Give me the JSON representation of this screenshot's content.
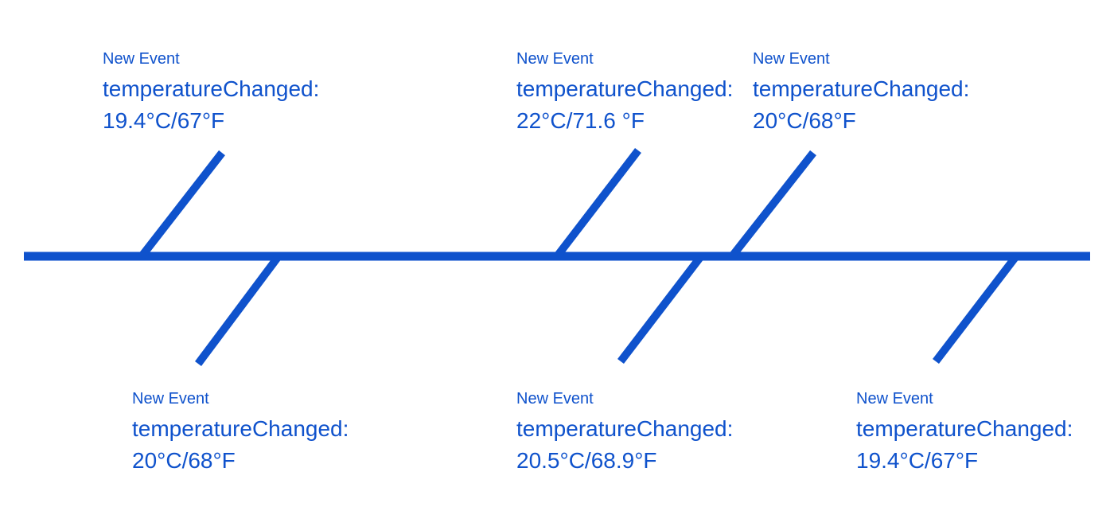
{
  "colors": {
    "line": "#0f52cc",
    "text": "#0f52cc",
    "background": "#ffffff"
  },
  "events": [
    {
      "id": "top-1",
      "kicker": "New Event",
      "name": "temperatureChanged:",
      "value": "19.4°C/67°F"
    },
    {
      "id": "top-2",
      "kicker": "New Event",
      "name": "temperatureChanged:",
      "value": "22°C/71.6 °F"
    },
    {
      "id": "top-3",
      "kicker": "New Event",
      "name": "temperatureChanged:",
      "value": "20°C/68°F"
    },
    {
      "id": "bottom-1",
      "kicker": "New Event",
      "name": "temperatureChanged:",
      "value": "20°C/68°F"
    },
    {
      "id": "bottom-2",
      "kicker": "New Event",
      "name": "temperatureChanged:",
      "value": "20.5°C/68.9°F"
    },
    {
      "id": "bottom-3",
      "kicker": "New Event",
      "name": "temperatureChanged:",
      "value": "19.4°C/67°F"
    }
  ]
}
